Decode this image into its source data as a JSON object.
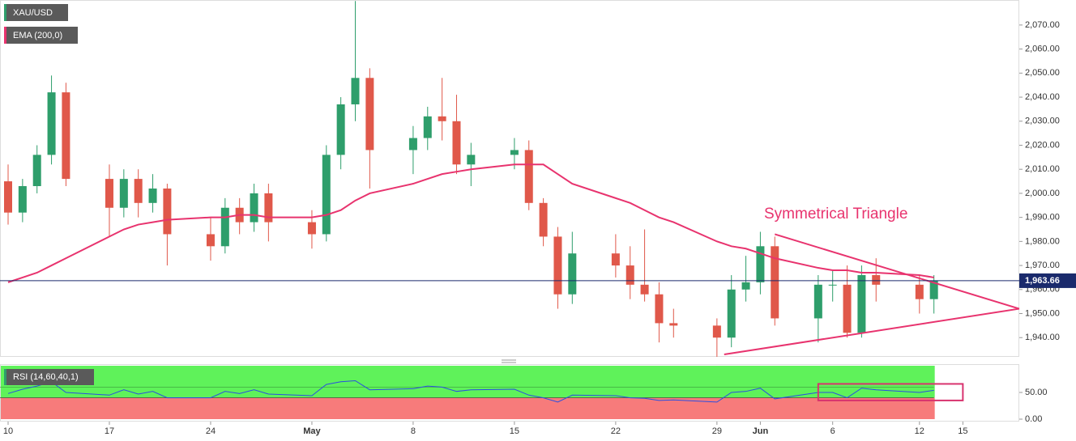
{
  "chart_data": [
    {
      "type": "candlestick",
      "legend": [
        "XAU/USD",
        "EMA (200,0)"
      ],
      "x": [
        0,
        1,
        2,
        3,
        4,
        7,
        8,
        9,
        10,
        11,
        14,
        15,
        16,
        17,
        18,
        21,
        22,
        23,
        24,
        25,
        28,
        29,
        30,
        31,
        32,
        35,
        36,
        37,
        38,
        39,
        42,
        43,
        44,
        45,
        46,
        49,
        50,
        51,
        52,
        53,
        56,
        57,
        58,
        59,
        60,
        63,
        64
      ],
      "open": [
        2005,
        1992,
        2003,
        2016,
        2042,
        2006,
        1994,
        2006,
        1996,
        2002,
        1983,
        1978,
        1994,
        1988,
        2000,
        1988,
        1983,
        2016,
        2037,
        2048,
        2018,
        2023,
        2032,
        2030,
        2012,
        2016,
        2018,
        1996,
        1982,
        1958,
        1975,
        1970,
        1962,
        1958,
        1946,
        1945,
        1940,
        1960,
        1963,
        1978,
        1948,
        1962,
        1962,
        1942,
        1966,
        1962,
        1956
      ],
      "high": [
        2012,
        2006,
        2020,
        2049,
        2046,
        2012,
        2010,
        2010,
        2008,
        2004,
        1990,
        1998,
        1998,
        2004,
        2004,
        1993,
        2020,
        2040,
        2080,
        2052,
        2028,
        2036,
        2048,
        2041,
        2021,
        2023,
        2022,
        1998,
        1986,
        1984,
        1983,
        1978,
        1985,
        1963,
        1952,
        1948,
        1966,
        1974,
        1984,
        1982,
        1966,
        1968,
        1970,
        1970,
        1973,
        1966,
        1966
      ],
      "low": [
        1987,
        1988,
        2000,
        2012,
        2003,
        1982,
        1990,
        1990,
        1992,
        1970,
        1972,
        1975,
        1983,
        1984,
        1980,
        1977,
        1980,
        2010,
        2030,
        2002,
        2008,
        2018,
        2022,
        2008,
        2003,
        2010,
        1993,
        1978,
        1952,
        1954,
        1965,
        1956,
        1955,
        1938,
        1940,
        1932,
        1936,
        1955,
        1958,
        1945,
        1938,
        1955,
        1940,
        1940,
        1955,
        1950,
        1950
      ],
      "close": [
        1992,
        2003,
        2016,
        2042,
        2006,
        1994,
        2006,
        1996,
        2002,
        1983,
        1978,
        1994,
        1988,
        2000,
        1988,
        1983,
        2016,
        2037,
        2048,
        2018,
        2023,
        2032,
        2030,
        2012,
        2016,
        2018,
        1996,
        1982,
        1958,
        1975,
        1970,
        1962,
        1958,
        1946,
        1945,
        1940,
        1960,
        1963,
        1978,
        1948,
        1962,
        1962,
        1942,
        1966,
        1962,
        1956,
        1963.66
      ],
      "up_color": "#2e9e6b",
      "down_color": "#e0584a",
      "series": [
        {
          "name": "EMA (200,0)",
          "color": "#e8336e",
          "values": [
            1963,
            1965,
            1967,
            1970,
            1973,
            1982,
            1985,
            1987,
            1988,
            1989,
            1990,
            1990,
            1991,
            1991,
            1990,
            1990,
            1991,
            1993,
            1997,
            2000,
            2004,
            2006,
            2008,
            2009,
            2010,
            2012,
            2012,
            2012,
            2008,
            2004,
            1998,
            1996,
            1993,
            1990,
            1988,
            1980,
            1978,
            1977,
            1975,
            1973,
            1969,
            1968,
            1968,
            1967,
            1967,
            1966,
            1965
          ]
        }
      ],
      "last_price": 1963.66,
      "last_price_label": "1,963.66",
      "last_price_color": "#1a2a6c",
      "annotation": "Symmetrical Triangle",
      "trendlines": [
        {
          "x": [
            53,
            69.9
          ],
          "y": [
            1983,
            1952
          ]
        },
        {
          "x": [
            49.5,
            69.9
          ],
          "y": [
            1933,
            1952
          ]
        }
      ],
      "xlim": [
        -0.56,
        69.9
      ],
      "ylim": [
        1932,
        2080.4
      ],
      "yticks": [
        {
          "value": 1940,
          "label": "1,940.00"
        },
        {
          "value": 1950,
          "label": "1,950.00"
        },
        {
          "value": 1960,
          "label": "1,960.00"
        },
        {
          "value": 1970,
          "label": "1,970.00"
        },
        {
          "value": 1980,
          "label": "1,980.00"
        },
        {
          "value": 1990,
          "label": "1,990.00"
        },
        {
          "value": 2000,
          "label": "2,000.00"
        },
        {
          "value": 2010,
          "label": "2,010.00"
        },
        {
          "value": 2020,
          "label": "2,020.00"
        },
        {
          "value": 2030,
          "label": "2,030.00"
        },
        {
          "value": 2040,
          "label": "2,040.00"
        },
        {
          "value": 2050,
          "label": "2,050.00"
        },
        {
          "value": 2060,
          "label": "2,060.00"
        },
        {
          "value": 2070,
          "label": "2,070.00"
        }
      ]
    },
    {
      "type": "line",
      "legend": "RSI (14,60,40,1)",
      "x": [
        0,
        1,
        2,
        3,
        4,
        7,
        8,
        9,
        10,
        11,
        14,
        15,
        16,
        17,
        18,
        21,
        22,
        23,
        24,
        25,
        28,
        29,
        30,
        31,
        32,
        35,
        36,
        37,
        38,
        39,
        42,
        43,
        44,
        45,
        46,
        49,
        50,
        51,
        52,
        53,
        56,
        57,
        58,
        59,
        60,
        63,
        64
      ],
      "series": [
        {
          "name": "RSI (14,60,40,1)",
          "color": "#2b4fe0",
          "values": [
            48,
            56,
            62,
            70,
            50,
            45,
            55,
            47,
            52,
            40,
            40,
            52,
            48,
            55,
            47,
            44,
            65,
            70,
            72,
            55,
            57,
            62,
            60,
            52,
            55,
            56,
            45,
            40,
            32,
            45,
            44,
            40,
            39,
            35,
            36,
            32,
            50,
            52,
            58,
            38,
            50,
            50,
            40,
            58,
            55,
            50,
            54
          ]
        }
      ],
      "upper_level": 60,
      "lower_level": 40,
      "box": {
        "x": [
          56,
          66
        ],
        "y": [
          35,
          66
        ]
      },
      "xlim": [
        -0.56,
        69.9
      ],
      "ylim": [
        0,
        100
      ],
      "yticks": [
        {
          "value": 50,
          "label": "50.00"
        },
        {
          "value": 0,
          "label": "0.00"
        }
      ],
      "xticks": [
        {
          "value": 0,
          "label": "10"
        },
        {
          "value": 7,
          "label": "17"
        },
        {
          "value": 14,
          "label": "24"
        },
        {
          "value": 21,
          "label": "May"
        },
        {
          "value": 28,
          "label": "8"
        },
        {
          "value": 35,
          "label": "15"
        },
        {
          "value": 42,
          "label": "22"
        },
        {
          "value": 49,
          "label": "29"
        },
        {
          "value": 52,
          "label": "Jun"
        },
        {
          "value": 57,
          "label": "6"
        },
        {
          "value": 63,
          "label": "12"
        },
        {
          "value": 66,
          "label": "15"
        }
      ]
    }
  ]
}
